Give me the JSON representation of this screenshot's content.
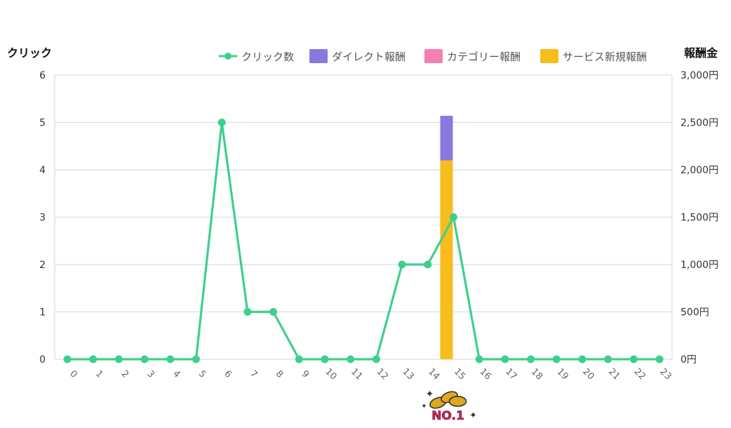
{
  "chart_data": {
    "type": "bar",
    "left_axis_title": "クリック",
    "right_axis_title": "報酬金",
    "categories": [
      "0",
      "1",
      "2",
      "3",
      "4",
      "5",
      "6",
      "7",
      "8",
      "9",
      "10",
      "11",
      "12",
      "13",
      "14",
      "15",
      "16",
      "17",
      "18",
      "19",
      "20",
      "21",
      "22",
      "23"
    ],
    "yleft_ticks": [
      "0",
      "1",
      "2",
      "3",
      "4",
      "5",
      "6"
    ],
    "yleft_lim": [
      0,
      6
    ],
    "yright_ticks": [
      "0円",
      "500円",
      "1,000円",
      "1,500円",
      "2,000円",
      "2,500円",
      "3,000円"
    ],
    "yright_lim": [
      0,
      3000
    ],
    "grid": true,
    "legend_position": "top-right",
    "series": [
      {
        "name": "クリック数",
        "kind": "line",
        "axis": "left",
        "color": "#3ecf8e",
        "values": [
          0,
          0,
          0,
          0,
          0,
          0,
          5,
          1,
          1,
          0,
          0,
          0,
          0,
          2,
          2,
          3,
          0,
          0,
          0,
          0,
          0,
          0,
          0,
          0
        ]
      },
      {
        "name": "ダイレクト報酬",
        "kind": "bar",
        "axis": "right",
        "color": "#8a78e0",
        "values": [
          0,
          0,
          0,
          0,
          0,
          0,
          0,
          0,
          0,
          0,
          0,
          0,
          0,
          0,
          0,
          470,
          0,
          0,
          0,
          0,
          0,
          0,
          0,
          0
        ]
      },
      {
        "name": "カテゴリー報酬",
        "kind": "bar",
        "axis": "right",
        "color": "#f77fb0",
        "values": [
          0,
          0,
          0,
          0,
          0,
          0,
          0,
          0,
          0,
          0,
          0,
          0,
          0,
          0,
          0,
          0,
          0,
          0,
          0,
          0,
          0,
          0,
          0,
          0
        ]
      },
      {
        "name": "サービス新規報酬",
        "kind": "bar",
        "axis": "right",
        "color": "#f8bd1c",
        "values": [
          0,
          0,
          0,
          0,
          0,
          0,
          0,
          0,
          0,
          0,
          0,
          0,
          0,
          0,
          0,
          2100,
          0,
          0,
          0,
          0,
          0,
          0,
          0,
          0
        ]
      }
    ],
    "badge": {
      "category": "15",
      "text": "NO.1",
      "icon": "gold-coins-icon"
    }
  }
}
